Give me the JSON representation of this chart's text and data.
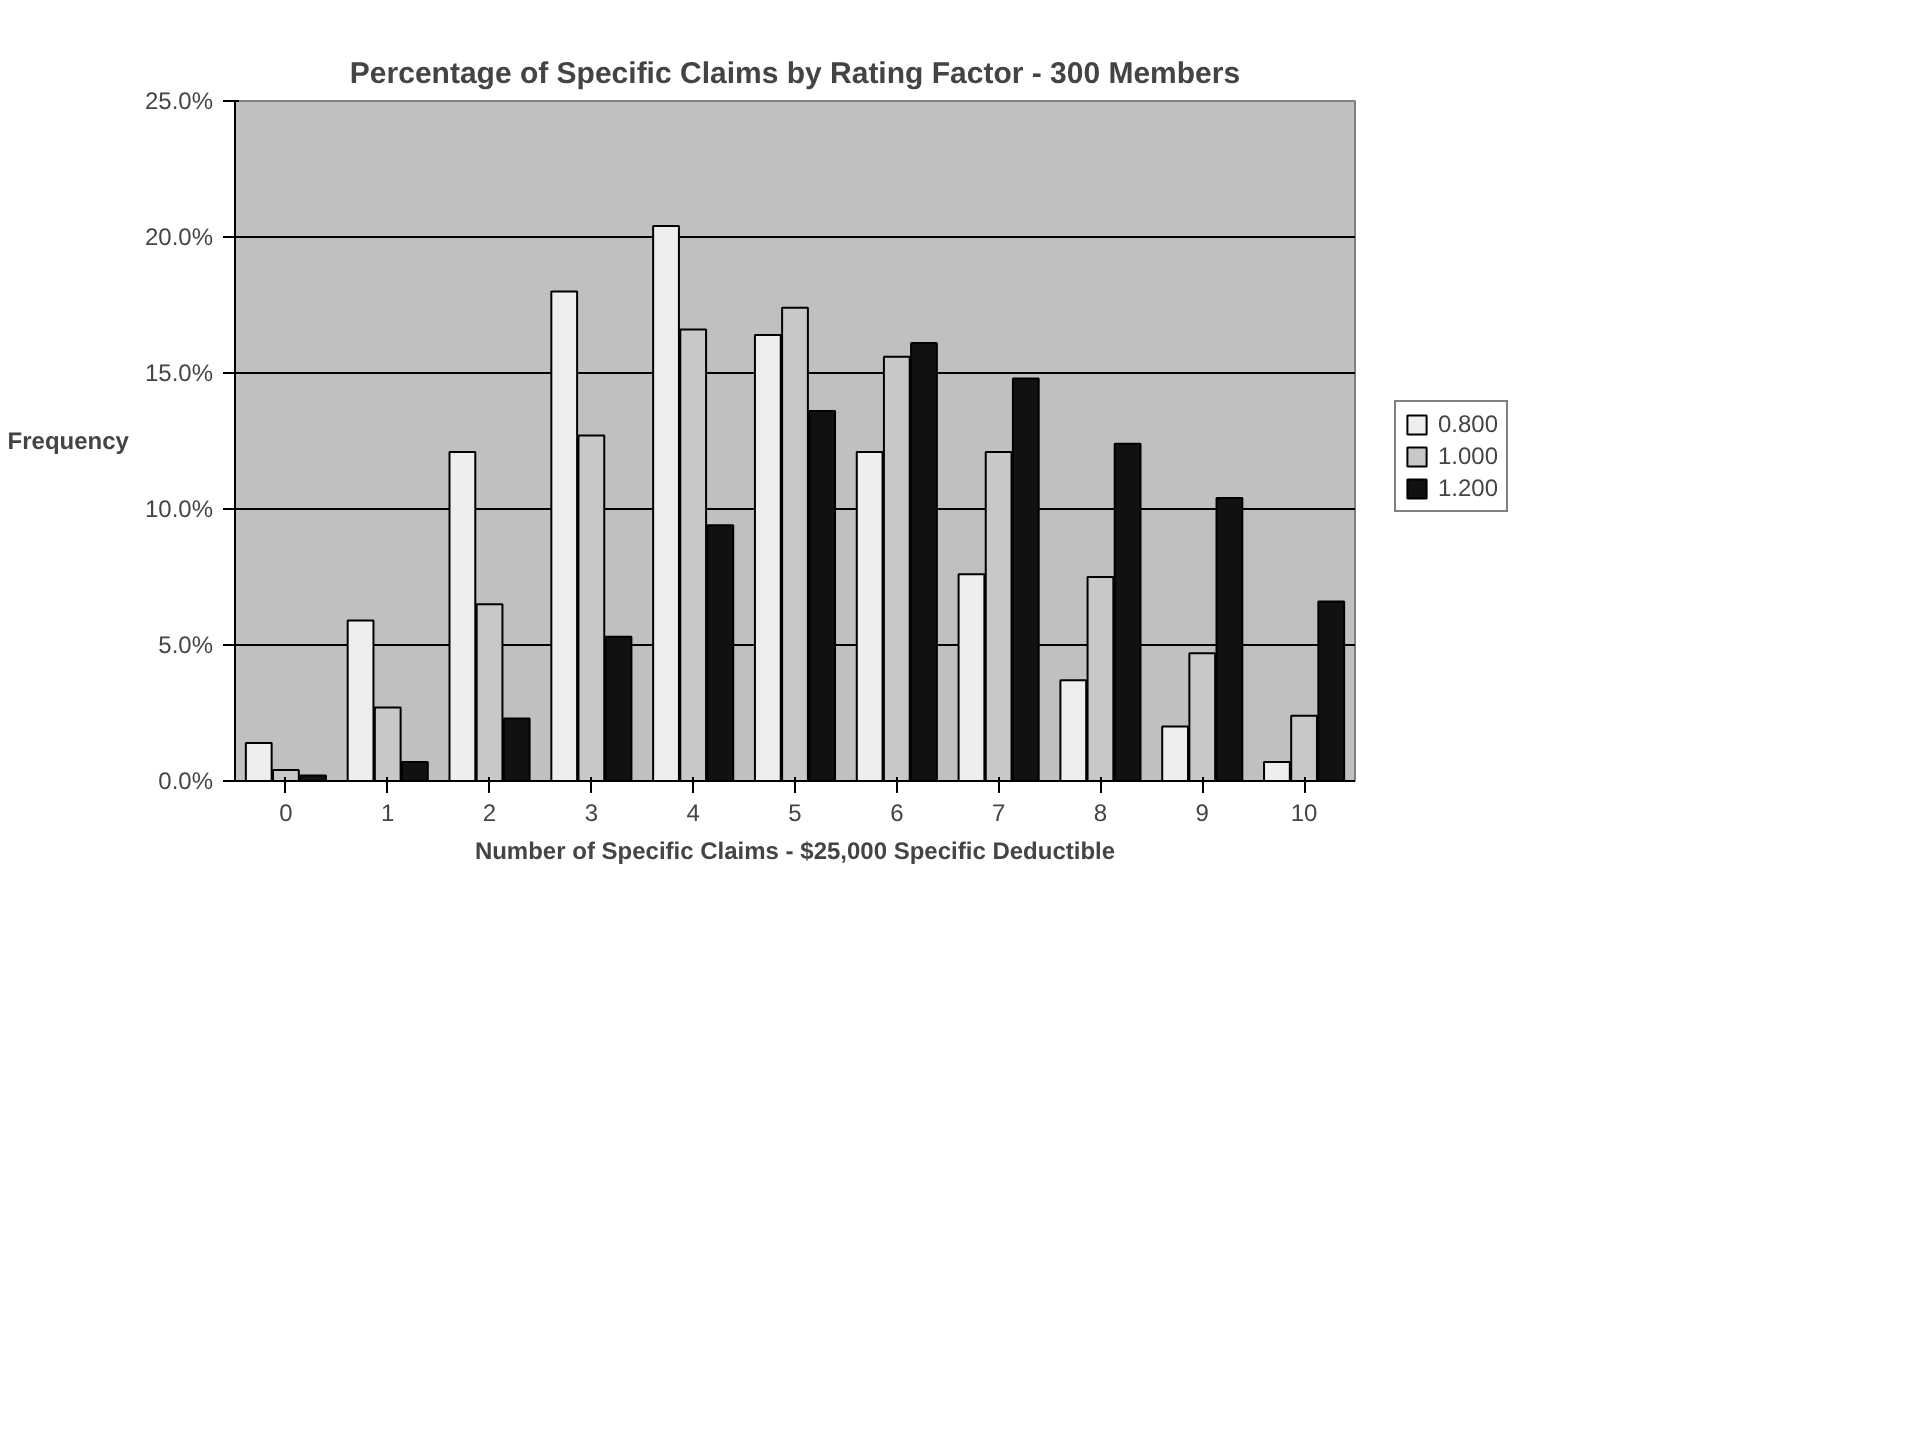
{
  "chart_data": {
    "type": "bar",
    "title": "Percentage of Specific Claims by Rating Factor - 300 Members",
    "xlabel": "Number of Specific Claims - $25,000 Specific Deductible",
    "ylabel": "Frequency",
    "categories": [
      "0",
      "1",
      "2",
      "3",
      "4",
      "5",
      "6",
      "7",
      "8",
      "9",
      "10"
    ],
    "series": [
      {
        "name": "0.800",
        "color": "#eeeeee",
        "values": [
          1.4,
          5.9,
          12.1,
          18.0,
          20.4,
          16.4,
          12.1,
          7.6,
          3.7,
          2.0,
          0.7
        ]
      },
      {
        "name": "1.000",
        "color": "#c8c8c8",
        "values": [
          0.4,
          2.7,
          6.5,
          12.7,
          16.6,
          17.4,
          15.6,
          12.1,
          7.5,
          4.7,
          2.4
        ]
      },
      {
        "name": "1.200",
        "color": "#111111",
        "values": [
          0.2,
          0.7,
          2.3,
          5.3,
          9.4,
          13.6,
          16.1,
          14.8,
          12.4,
          10.4,
          6.6
        ]
      }
    ],
    "ylim": [
      0,
      25
    ],
    "yticks": [
      {
        "value": 0,
        "label": "0.0%"
      },
      {
        "value": 5,
        "label": "5.0%"
      },
      {
        "value": 10,
        "label": "10.0%"
      },
      {
        "value": 15,
        "label": "15.0%"
      },
      {
        "value": 20,
        "label": "20.0%"
      },
      {
        "value": 25,
        "label": "25.0%"
      }
    ],
    "grid": "y",
    "legend": "right"
  }
}
